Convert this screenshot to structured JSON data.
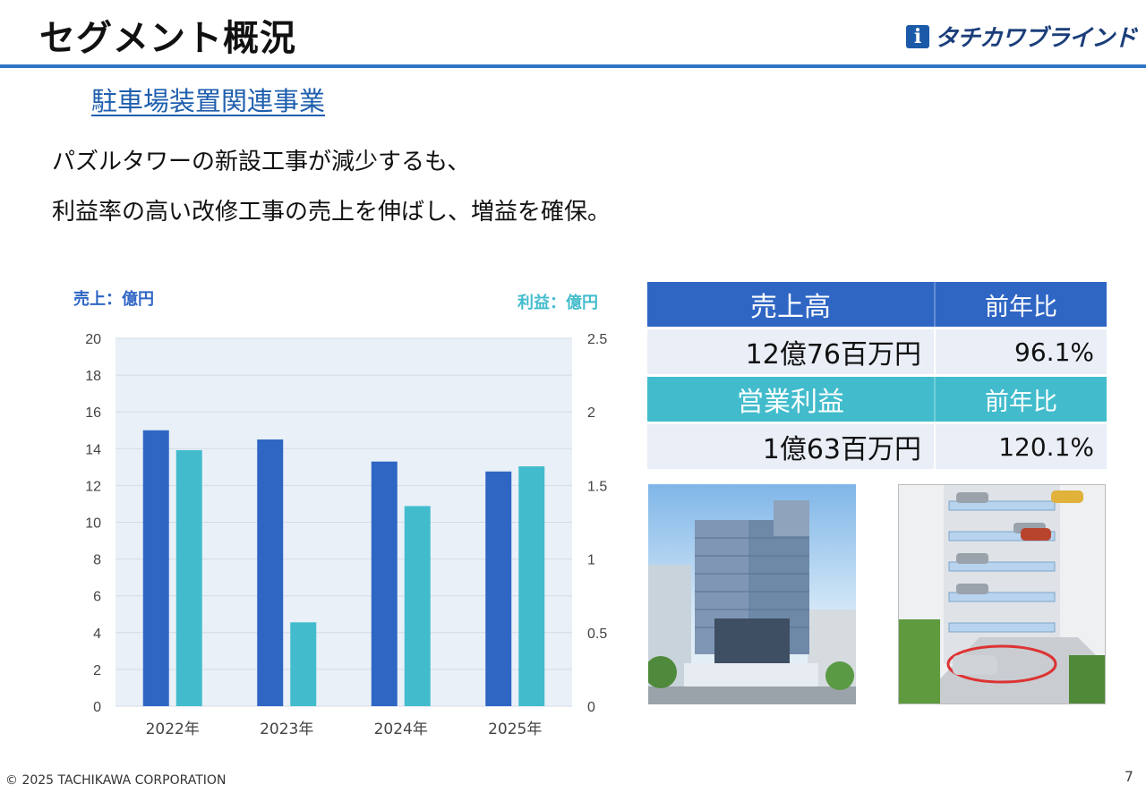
{
  "header": {
    "title": "セグメント概況",
    "logo_text": "タチカワブラインド",
    "logo_mark": "i"
  },
  "section": {
    "subtitle": "駐車場装置関連事業",
    "lead_line1": "パズルタワーの新設工事が減少するも、",
    "lead_line2": "利益率の高い改修工事の売上を伸ばし、増益を確保。"
  },
  "chart_data": {
    "type": "bar",
    "categories": [
      "2022年",
      "2023年",
      "2024年",
      "2025年"
    ],
    "series": [
      {
        "name": "売上",
        "axis": "left",
        "color": "#2f66c4",
        "values": [
          15.0,
          14.5,
          13.3,
          12.76
        ]
      },
      {
        "name": "利益",
        "axis": "right",
        "color": "#42bccd",
        "values": [
          1.74,
          0.57,
          1.36,
          1.63
        ]
      }
    ],
    "left_axis": {
      "label": "売上：億円",
      "min": 0,
      "max": 20,
      "ticks": [
        "0",
        "2",
        "4",
        "6",
        "8",
        "10",
        "12",
        "14",
        "16",
        "18",
        "20"
      ]
    },
    "right_axis": {
      "label": "利益：億円",
      "min": 0,
      "max": 2.5,
      "ticks": [
        "0",
        "0.5",
        "1",
        "1.5",
        "2",
        "2.5"
      ]
    },
    "grid": true,
    "legend": "none"
  },
  "kpi": {
    "sales_label": "売上高",
    "yoy_label": "前年比",
    "sales_value": "12億76百万円",
    "sales_yoy": "96.1%",
    "profit_label": "営業利益",
    "profit_yoy_label": "前年比",
    "profit_value": "1億63百万円",
    "profit_yoy": "120.1%"
  },
  "colors": {
    "accent_blue": "#2f66c4",
    "accent_teal": "#42bccd",
    "rule": "#2e75c7",
    "subtitle": "#1f5fae"
  },
  "footer": {
    "copyright": "© 2025 TACHIKAWA CORPORATION",
    "page": "7"
  }
}
